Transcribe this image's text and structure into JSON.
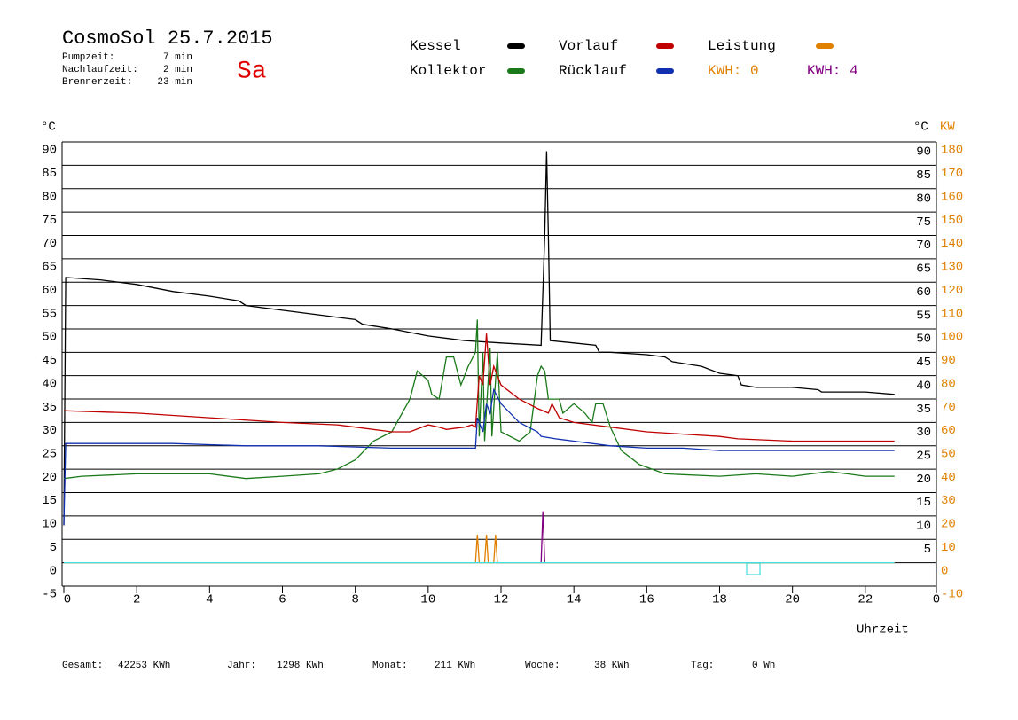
{
  "chart_data": {
    "type": "line",
    "title": "CosmoSol 25.7.2015",
    "info": [
      {
        "label": "Pumpzeit:",
        "value": "7 min"
      },
      {
        "label": "Nachlaufzeit:",
        "value": "2 min"
      },
      {
        "label": "Brennerzeit:",
        "value": "23 min"
      }
    ],
    "day": "Sa",
    "kwh_labels": [
      {
        "text": "KWH: 0",
        "color": "#e08000"
      },
      {
        "text": "KWH: 4",
        "color": "#800080"
      }
    ],
    "ylabel": "°C",
    "y_right_label": "°C",
    "y2label": "KW",
    "xlabel": "Uhrzeit",
    "xlim": [
      0,
      24
    ],
    "xticks": [
      0,
      2,
      4,
      6,
      8,
      10,
      12,
      14,
      16,
      18,
      20,
      22,
      {
        "value": 24,
        "label": "0"
      }
    ],
    "ylim": [
      -5,
      90
    ],
    "yticks": [
      -5,
      0,
      5,
      10,
      15,
      20,
      25,
      30,
      35,
      40,
      45,
      50,
      55,
      60,
      65,
      70,
      75,
      80,
      85,
      90
    ],
    "y_right_ticks": [
      5,
      10,
      15,
      20,
      25,
      30,
      35,
      40,
      45,
      50,
      55,
      60,
      65,
      70,
      75,
      80,
      85,
      90
    ],
    "y2lim": [
      -10,
      180
    ],
    "y2ticks": [
      -10,
      0,
      10,
      20,
      30,
      40,
      50,
      60,
      70,
      80,
      90,
      100,
      110,
      120,
      130,
      140,
      150,
      160,
      170,
      180
    ],
    "grid": true,
    "series": [
      {
        "name": "Kessel",
        "color": "#000000",
        "x": [
          0,
          0.05,
          1,
          2,
          3,
          4,
          4.8,
          5,
          6,
          7,
          8,
          8.2,
          9,
          10,
          11,
          12,
          13.1,
          13.2,
          13.25,
          13.3,
          13.35,
          14,
          14.6,
          14.7,
          15,
          16,
          16.5,
          16.7,
          17.5,
          18,
          18.5,
          18.6,
          19,
          20,
          20.7,
          20.8,
          22,
          22.8
        ],
        "values": [
          8,
          61,
          60.5,
          59.5,
          58,
          57,
          56,
          55,
          54,
          53,
          52,
          51,
          50,
          48.5,
          47.5,
          47,
          46.5,
          70,
          88,
          70,
          47.5,
          47,
          46.5,
          45,
          45,
          44.5,
          44,
          43,
          42,
          40.5,
          40,
          38,
          37.5,
          37.5,
          37,
          36.5,
          36.5,
          36
        ]
      },
      {
        "name": "Kollektor",
        "color": "#1a7a1a",
        "x": [
          0,
          0.5,
          2,
          4,
          5,
          6,
          7,
          7.5,
          8,
          8.5,
          9,
          9.5,
          9.7,
          10,
          10.1,
          10.3,
          10.5,
          10.7,
          10.9,
          11.1,
          11.3,
          11.35,
          11.4,
          11.5,
          11.55,
          11.7,
          11.75,
          11.9,
          12,
          12.5,
          12.8,
          13,
          13.1,
          13.2,
          13.3,
          13.6,
          13.7,
          14,
          14.3,
          14.5,
          14.6,
          14.8,
          15,
          15.3,
          15.8,
          16.5,
          18,
          19,
          20,
          21,
          21.5,
          22,
          22.8
        ],
        "values": [
          18,
          18.5,
          19,
          19,
          18,
          18.5,
          19,
          20,
          22,
          26,
          28,
          35,
          41,
          39,
          36,
          35,
          44,
          44,
          38,
          42,
          45,
          52,
          27,
          45,
          26,
          46,
          27,
          45,
          28,
          26,
          28,
          40,
          42,
          41,
          35,
          35,
          32,
          34,
          32,
          30,
          34,
          34,
          29,
          24,
          21,
          19,
          18.5,
          19,
          18.5,
          19.5,
          19,
          18.5,
          18.5
        ]
      },
      {
        "name": "Vorlauf",
        "color": "#c00000",
        "x": [
          0,
          2,
          4,
          6,
          7.5,
          8,
          9,
          9.5,
          10,
          10.3,
          10.5,
          11,
          11.2,
          11.3,
          11.4,
          11.5,
          11.6,
          11.7,
          11.8,
          12,
          12.5,
          13,
          13.3,
          13.4,
          13.6,
          14,
          15,
          16,
          17,
          18,
          18.5,
          20,
          22.8
        ],
        "values": [
          32.5,
          32,
          31,
          30,
          29.5,
          29,
          28,
          28,
          29.5,
          29,
          28.5,
          29,
          29.5,
          29,
          40,
          38,
          49,
          38,
          42,
          38,
          35,
          33,
          32,
          34,
          31,
          30,
          29,
          28,
          27.5,
          27,
          26.5,
          26,
          26
        ]
      },
      {
        "name": "Rücklauf",
        "color": "#1030b0",
        "x": [
          0,
          0.05,
          3,
          5,
          7,
          9,
          11.3,
          11.35,
          11.5,
          11.6,
          11.7,
          11.8,
          12,
          12.5,
          13,
          13.1,
          13.5,
          14,
          15,
          16,
          17,
          18,
          20,
          22.8
        ],
        "values": [
          8,
          25.5,
          25.5,
          25,
          25,
          24.5,
          24.5,
          31,
          28,
          34,
          32,
          37,
          34,
          30,
          28,
          27,
          26.5,
          26,
          25,
          24.5,
          24.5,
          24,
          24,
          24
        ]
      },
      {
        "name": "Leistung",
        "color": "#e08000",
        "axis": "y2",
        "x": [
          0,
          11.3,
          11.35,
          11.4,
          11.55,
          11.6,
          11.65,
          11.8,
          11.85,
          11.9,
          22.8
        ],
        "values": [
          0,
          0,
          12,
          0,
          0,
          12,
          0,
          0,
          12,
          0,
          0
        ]
      },
      {
        "color": "#800080",
        "axis": "y2",
        "x": [
          13.1,
          13.15,
          13.2
        ],
        "values": [
          0,
          22,
          0
        ]
      },
      {
        "color": "#40e0e0",
        "axis": "y2",
        "x": [
          0,
          22.8
        ],
        "values": [
          0,
          0
        ]
      }
    ],
    "footer": [
      {
        "label": "Gesamt:",
        "value": "42253 KWh"
      },
      {
        "label": "Jahr:",
        "value": "1298 KWh"
      },
      {
        "label": "Monat:",
        "value": "211 KWh"
      },
      {
        "label": "Woche:",
        "value": "38 KWh"
      },
      {
        "label": "Tag:",
        "value": "0 Wh"
      }
    ]
  }
}
